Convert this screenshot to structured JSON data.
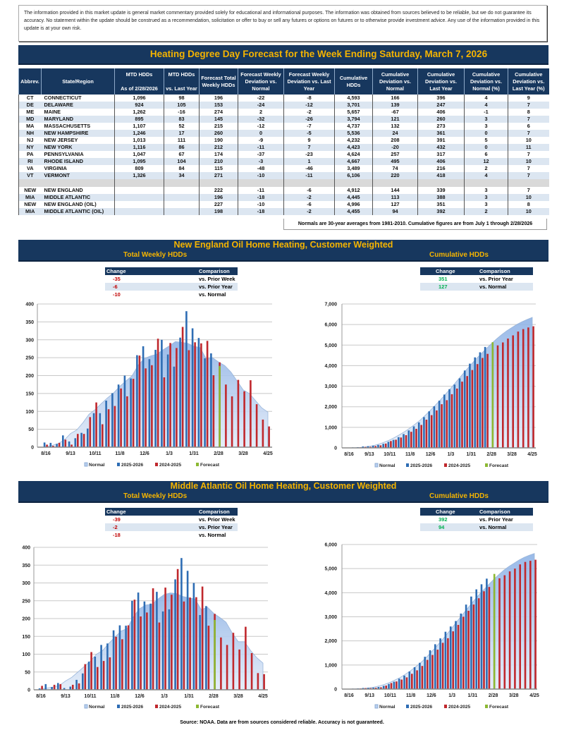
{
  "disclaimer": "The information provided in this market update is general market commentary provided solely for educational and informational purposes.  The information was obtained from sources believed to be reliable, but we do not guarantee its accuracy.  No statement within the update should be construed as a recommendation, solicitation or offer to buy or sell any futures or options on futures or to otherwise provide investment advice.  Any use of the information provided in this update is at your own risk.",
  "title": "Heating Degree Day Forecast for the Week Ending  Saturday, March 7, 2026",
  "table": {
    "headers": [
      "Abbrev.",
      "State/Region",
      "MTD HDDs\n\nAs of  2/28/2026",
      "MTD HDDs\n\nvs. Last Year",
      "Forecast Total Weekly HDDs",
      "Forecast Weekly Deviation vs. Normal",
      "Forecast Weekly Deviation vs. Last Year",
      "Cumulative HDDs",
      "Cumulative Deviation vs. Normal",
      "Cumulative Deviation vs. Last Year",
      "Cumulative Deviation vs. Normal (%)",
      "Cumulative Deviation vs. Last Year (%)"
    ],
    "states": [
      [
        "CT",
        "CONNECTICUT",
        "1,096",
        "98",
        "196",
        "-22",
        "-8",
        "4,593",
        "166",
        "396",
        "4",
        "9"
      ],
      [
        "DE",
        "DELAWARE",
        "924",
        "105",
        "153",
        "-24",
        "-12",
        "3,701",
        "139",
        "247",
        "4",
        "7"
      ],
      [
        "ME",
        "MAINE",
        "1,262",
        "-16",
        "274",
        "2",
        "-2",
        "5,657",
        "-67",
        "406",
        "-1",
        "8"
      ],
      [
        "MD",
        "MARYLAND",
        "895",
        "83",
        "145",
        "-32",
        "-26",
        "3,794",
        "121",
        "260",
        "3",
        "7"
      ],
      [
        "MA",
        "MASSACHUSETTS",
        "1,107",
        "52",
        "215",
        "-12",
        "-7",
        "4,737",
        "132",
        "273",
        "3",
        "6"
      ],
      [
        "NH",
        "NEW HAMPSHIRE",
        "1,246",
        "17",
        "260",
        "0",
        "-5",
        "5,536",
        "24",
        "361",
        "0",
        "7"
      ],
      [
        "NJ",
        "NEW JERSEY",
        "1,013",
        "111",
        "190",
        "-9",
        "9",
        "4,232",
        "208",
        "391",
        "5",
        "10"
      ],
      [
        "NY",
        "NEW YORK",
        "1,116",
        "86",
        "212",
        "-11",
        "7",
        "4,423",
        "-20",
        "432",
        "0",
        "11"
      ],
      [
        "PA",
        "PENNSYLVANIA",
        "1,047",
        "67",
        "174",
        "-37",
        "-23",
        "4,624",
        "257",
        "317",
        "6",
        "7"
      ],
      [
        "RI",
        "RHODE ISLAND",
        "1,095",
        "104",
        "210",
        "-3",
        "1",
        "4,667",
        "495",
        "406",
        "12",
        "10"
      ],
      [
        "VA",
        "VIRGINIA",
        "809",
        "84",
        "115",
        "-48",
        "-46",
        "3,489",
        "74",
        "216",
        "2",
        "7"
      ],
      [
        "VT",
        "VERMONT",
        "1,326",
        "34",
        "271",
        "-10",
        "-11",
        "6,106",
        "220",
        "418",
        "4",
        "7"
      ]
    ],
    "regions": [
      [
        "NEW",
        "NEW ENGLAND",
        "",
        "",
        "222",
        "-11",
        "-6",
        "4,912",
        "144",
        "339",
        "3",
        "7"
      ],
      [
        "MIA",
        "MIDDLE ATLANTIC",
        "",
        "",
        "196",
        "-18",
        "-2",
        "4,445",
        "113",
        "388",
        "3",
        "10"
      ],
      [
        "NEW",
        "NEW ENGLAND (OIL)",
        "",
        "",
        "227",
        "-10",
        "-6",
        "4,996",
        "127",
        "351",
        "3",
        "8"
      ],
      [
        "MIA",
        "MIDDLE ATLANTIC (OIL)",
        "",
        "",
        "198",
        "-18",
        "-2",
        "4,455",
        "94",
        "392",
        "2",
        "10"
      ]
    ],
    "note": "Normals are 30-year averages from 1981-2010. Cumulative figures are from July 1 through  2/28/2026"
  },
  "sections": [
    {
      "title": "New England Oil Home Heating, Customer Weighted",
      "weekly_label": "Total Weekly HDDs",
      "cumulative_label": "Cumulative HDDs",
      "weekly_changes": {
        "headers": [
          "Change",
          "Comparison"
        ],
        "rows": [
          [
            "-35",
            "vs. Prior Week"
          ],
          [
            "-6",
            "vs. Prior Year"
          ],
          [
            "-10",
            "vs. Normal"
          ]
        ]
      },
      "cumulative_changes": {
        "headers": [
          "Change",
          "Comparison"
        ],
        "rows": [
          [
            "351",
            "vs. Prior Year"
          ],
          [
            "127",
            "vs. Normal"
          ]
        ]
      }
    },
    {
      "title": "Middle Atlantic Oil Home Heating, Customer Weighted",
      "weekly_label": "Total Weekly HDDs",
      "cumulative_label": "Cumulative HDDs",
      "weekly_changes": {
        "headers": [
          "Change",
          "Comparison"
        ],
        "rows": [
          [
            "-39",
            "vs. Prior Week"
          ],
          [
            "-2",
            "vs. Prior Year"
          ],
          [
            "-18",
            "vs. Normal"
          ]
        ]
      },
      "cumulative_changes": {
        "headers": [
          "Change",
          "Comparison"
        ],
        "rows": [
          [
            "392",
            "vs. Prior Year"
          ],
          [
            "94",
            "vs. Normal"
          ]
        ]
      }
    }
  ],
  "colors": {
    "navy": "#17375e",
    "gold": "#f5b400",
    "series_2025_2026": "#2e6db4",
    "series_2024_2025": "#c0282d",
    "forecast": "#8cb832",
    "normal": "#b8cfee",
    "negative": "#c00000",
    "positive": "#00b050"
  },
  "chart_data": [
    {
      "type": "bar",
      "ylim": [
        0,
        400
      ],
      "yticks": [
        0,
        50,
        100,
        150,
        200,
        250,
        300,
        350,
        400
      ],
      "x_tick_labels": [
        "8/16",
        "9/13",
        "10/11",
        "11/8",
        "12/6",
        "1/3",
        "1/31",
        "2/28",
        "3/28",
        "4/25"
      ],
      "legend": "bottom",
      "grid": true,
      "series": [
        {
          "name": "Normal",
          "kind": "area",
          "values": [
            2,
            5,
            10,
            20,
            38,
            48,
            68,
            92,
            105,
            122,
            138,
            152,
            170,
            185,
            200,
            230,
            248,
            255,
            260,
            272,
            283,
            295,
            293,
            290,
            282,
            278,
            247,
            250,
            238,
            228,
            210,
            185,
            160,
            150,
            130,
            110,
            98
          ]
        },
        {
          "name": "2025-2026",
          "values": [
            13,
            12,
            9,
            33,
            16,
            25,
            40,
            52,
            95,
            95,
            130,
            151,
            175,
            200,
            192,
            257,
            282,
            246,
            272,
            300,
            259,
            225,
            306,
            380,
            332,
            305,
            248,
            262
          ]
        },
        {
          "name": "2024-2025",
          "values": [
            7,
            4,
            12,
            21,
            7,
            37,
            37,
            84,
            125,
            64,
            106,
            115,
            164,
            142,
            191,
            256,
            220,
            229,
            303,
            195,
            291,
            277,
            336,
            271,
            293,
            290,
            297,
            201,
            237,
            175,
            142,
            188,
            156,
            187,
            120,
            77,
            58
          ]
        },
        {
          "name": "Forecast",
          "values": [
            null,
            null,
            null,
            null,
            null,
            null,
            null,
            null,
            null,
            null,
            null,
            null,
            null,
            null,
            null,
            null,
            null,
            null,
            null,
            null,
            null,
            null,
            null,
            null,
            null,
            null,
            null,
            null,
            227
          ]
        }
      ]
    },
    {
      "type": "bar",
      "ylim": [
        0,
        7000
      ],
      "yticks": [
        0,
        1000,
        2000,
        3000,
        4000,
        5000,
        6000,
        7000
      ],
      "x_tick_labels": [
        "8/16",
        "9/13",
        "10/11",
        "11/8",
        "12/6",
        "1/3",
        "1/31",
        "2/28",
        "3/28",
        "4/25"
      ],
      "legend": "bottom",
      "grid": true,
      "series": [
        {
          "name": "Normal",
          "kind": "area",
          "values": [
            2,
            7,
            17,
            37,
            75,
            123,
            191,
            283,
            388,
            510,
            648,
            800,
            970,
            1155,
            1355,
            1585,
            1833,
            2088,
            2348,
            2620,
            2903,
            3198,
            3491,
            3781,
            4063,
            4341,
            4588,
            4838,
            5076,
            5304,
            5514,
            5699,
            5859,
            6009,
            6139,
            6249,
            6347
          ]
        },
        {
          "name": "2025-2026",
          "values": [
            13,
            25,
            34,
            67,
            83,
            108,
            148,
            200,
            295,
            390,
            520,
            671,
            846,
            1046,
            1238,
            1495,
            1777,
            2023,
            2295,
            2595,
            2854,
            3079,
            3385,
            3765,
            4097,
            4402,
            4650,
            4912
          ]
        },
        {
          "name": "2024-2025",
          "values": [
            7,
            11,
            23,
            44,
            51,
            88,
            125,
            209,
            334,
            398,
            504,
            619,
            783,
            925,
            1116,
            1372,
            1592,
            1821,
            2124,
            2319,
            2610,
            2887,
            3223,
            3494,
            3787,
            4077,
            4374,
            4575,
            4812,
            4987,
            5129,
            5317,
            5473,
            5660,
            5780,
            5857,
            5915
          ]
        },
        {
          "name": "Forecast",
          "values": [
            null,
            null,
            null,
            null,
            null,
            null,
            null,
            null,
            null,
            null,
            null,
            null,
            null,
            null,
            null,
            null,
            null,
            null,
            null,
            null,
            null,
            null,
            null,
            null,
            null,
            null,
            null,
            null,
            5139
          ]
        }
      ]
    },
    {
      "type": "bar",
      "ylim": [
        0,
        400
      ],
      "yticks": [
        0,
        50,
        100,
        150,
        200,
        250,
        300,
        350,
        400
      ],
      "x_tick_labels": [
        "8/16",
        "9/13",
        "10/11",
        "11/8",
        "12/6",
        "1/3",
        "1/31",
        "2/28",
        "3/28",
        "4/25"
      ],
      "legend": "bottom",
      "grid": true,
      "series": [
        {
          "name": "Normal",
          "kind": "area",
          "values": [
            2,
            5,
            8,
            12,
            25,
            35,
            50,
            65,
            80,
            100,
            110,
            130,
            148,
            165,
            172,
            205,
            228,
            238,
            240,
            255,
            268,
            272,
            270,
            262,
            258,
            255,
            225,
            232,
            215,
            203,
            190,
            160,
            135,
            135,
            110,
            90,
            75
          ]
        },
        {
          "name": "2025-2026",
          "values": [
            4,
            16,
            8,
            19,
            5,
            9,
            28,
            46,
            79,
            93,
            126,
            130,
            167,
            181,
            180,
            250,
            273,
            248,
            242,
            275,
            220,
            226,
            310,
            370,
            334,
            300,
            210,
            235
          ]
        },
        {
          "name": "2024-2025",
          "values": [
            11,
            0,
            14,
            16,
            0,
            14,
            18,
            72,
            106,
            64,
            81,
            91,
            149,
            142,
            181,
            253,
            206,
            217,
            285,
            189,
            287,
            267,
            339,
            248,
            259,
            260,
            290,
            180,
            213,
            147,
            126,
            160,
            113,
            177,
            103,
            47,
            44
          ]
        },
        {
          "name": "Forecast",
          "values": [
            null,
            null,
            null,
            null,
            null,
            null,
            null,
            null,
            null,
            null,
            null,
            null,
            null,
            null,
            null,
            null,
            null,
            null,
            null,
            null,
            null,
            null,
            null,
            null,
            null,
            null,
            null,
            null,
            196
          ]
        }
      ]
    },
    {
      "type": "bar",
      "ylim": [
        0,
        6000
      ],
      "yticks": [
        0,
        1000,
        2000,
        3000,
        4000,
        5000,
        6000
      ],
      "x_tick_labels": [
        "8/16",
        "9/13",
        "10/11",
        "11/8",
        "12/6",
        "1/3",
        "1/31",
        "2/28",
        "3/28",
        "4/25"
      ],
      "legend": "bottom",
      "grid": true,
      "series": [
        {
          "name": "Normal",
          "kind": "area",
          "values": [
            2,
            7,
            15,
            27,
            52,
            87,
            137,
            202,
            282,
            382,
            492,
            622,
            770,
            935,
            1107,
            1312,
            1540,
            1778,
            2018,
            2273,
            2541,
            2813,
            3083,
            3345,
            3603,
            3858,
            4083,
            4315,
            4530,
            4733,
            4923,
            5083,
            5218,
            5353,
            5463,
            5553,
            5628
          ]
        },
        {
          "name": "2025-2026",
          "values": [
            4,
            20,
            28,
            47,
            52,
            61,
            89,
            135,
            214,
            307,
            433,
            563,
            730,
            911,
            1091,
            1341,
            1614,
            1862,
            2104,
            2379,
            2599,
            2825,
            3135,
            3505,
            3839,
            4139,
            4349,
            4584
          ]
        },
        {
          "name": "2024-2025",
          "values": [
            11,
            11,
            25,
            41,
            41,
            55,
            73,
            145,
            251,
            315,
            396,
            487,
            636,
            778,
            959,
            1212,
            1418,
            1635,
            1920,
            2109,
            2396,
            2663,
            3002,
            3250,
            3509,
            3769,
            4059,
            4239,
            4452,
            4599,
            4725,
            4885,
            4998,
            5175,
            5278,
            5325,
            5369
          ]
        },
        {
          "name": "Forecast",
          "values": [
            null,
            null,
            null,
            null,
            null,
            null,
            null,
            null,
            null,
            null,
            null,
            null,
            null,
            null,
            null,
            null,
            null,
            null,
            null,
            null,
            null,
            null,
            null,
            null,
            null,
            null,
            null,
            null,
            4780
          ]
        }
      ]
    }
  ],
  "footer": "Source: NOAA. Data are from sources considered reliable. Accuracy is not guaranteed."
}
